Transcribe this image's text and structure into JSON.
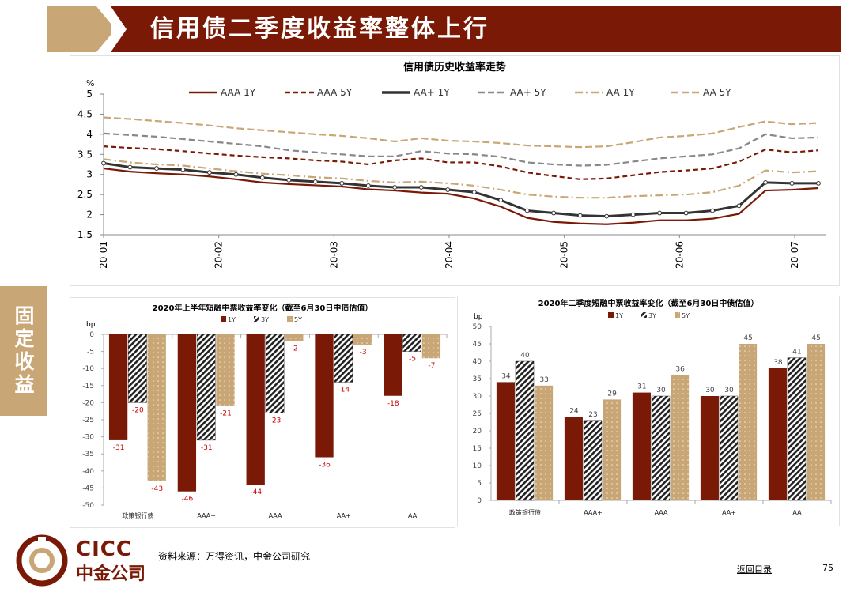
{
  "header": {
    "title": "信用债二季度收益率整体上行"
  },
  "sidebar": {
    "section_label": "固定收益"
  },
  "footer": {
    "source": "资料来源：万得资讯，中金公司研究",
    "toc_link": "返回目录",
    "page_number": "75",
    "logo_cn": "中金公司",
    "logo_en": "CICC"
  },
  "chart_data": [
    {
      "id": "credit-yield-history",
      "type": "line",
      "title": "信用债历史收益率走势",
      "ylabel": "%",
      "ylim": [
        1.5,
        5
      ],
      "yticks": [
        "5",
        "4.5",
        "4",
        "3.5",
        "3",
        "2.5",
        "2",
        "1.5"
      ],
      "xticks": [
        "20-01",
        "20-02",
        "20-03",
        "20-04",
        "20-05",
        "20-06",
        "20-07"
      ],
      "x_points": 28,
      "series": [
        {
          "name": "AAA 1Y",
          "color": "#7a1a06",
          "dash": "",
          "values": [
            3.15,
            3.07,
            3.03,
            3.0,
            2.95,
            2.88,
            2.8,
            2.76,
            2.73,
            2.7,
            2.63,
            2.6,
            2.55,
            2.52,
            2.4,
            2.2,
            1.92,
            1.82,
            1.78,
            1.76,
            1.8,
            1.86,
            1.86,
            1.9,
            2.02,
            2.6,
            2.62,
            2.66
          ]
        },
        {
          "name": "AAA 5Y",
          "color": "#7a1a06",
          "dash": "6,4",
          "values": [
            3.7,
            3.66,
            3.63,
            3.58,
            3.52,
            3.47,
            3.43,
            3.4,
            3.35,
            3.32,
            3.25,
            3.35,
            3.4,
            3.3,
            3.3,
            3.2,
            3.05,
            2.96,
            2.88,
            2.9,
            2.98,
            3.06,
            3.1,
            3.15,
            3.32,
            3.62,
            3.55,
            3.6
          ]
        },
        {
          "name": "AA+ 1Y",
          "color": "#333333",
          "dash": "",
          "marker": true,
          "values": [
            3.28,
            3.18,
            3.15,
            3.12,
            3.05,
            3.0,
            2.92,
            2.86,
            2.82,
            2.78,
            2.72,
            2.68,
            2.68,
            2.62,
            2.56,
            2.36,
            2.1,
            2.04,
            1.98,
            1.96,
            2.0,
            2.04,
            2.04,
            2.1,
            2.22,
            2.8,
            2.78,
            2.78
          ]
        },
        {
          "name": "AA+ 5Y",
          "color": "#888888",
          "dash": "8,4",
          "values": [
            4.02,
            3.98,
            3.94,
            3.88,
            3.82,
            3.76,
            3.7,
            3.6,
            3.55,
            3.5,
            3.45,
            3.45,
            3.58,
            3.52,
            3.5,
            3.44,
            3.3,
            3.25,
            3.22,
            3.24,
            3.32,
            3.4,
            3.45,
            3.5,
            3.65,
            4.0,
            3.9,
            3.92
          ]
        },
        {
          "name": "AA 1Y",
          "color": "#c9a675",
          "dash": "10,4,2,4",
          "values": [
            3.38,
            3.3,
            3.25,
            3.22,
            3.15,
            3.08,
            3.02,
            2.98,
            2.93,
            2.9,
            2.84,
            2.8,
            2.82,
            2.78,
            2.72,
            2.62,
            2.5,
            2.45,
            2.42,
            2.42,
            2.46,
            2.48,
            2.5,
            2.56,
            2.72,
            3.1,
            3.05,
            3.08
          ]
        },
        {
          "name": "AA 5Y",
          "color": "#c9a675",
          "dash": "9,4",
          "values": [
            4.42,
            4.38,
            4.33,
            4.28,
            4.22,
            4.15,
            4.1,
            4.05,
            4.0,
            3.96,
            3.9,
            3.82,
            3.9,
            3.84,
            3.82,
            3.78,
            3.72,
            3.7,
            3.68,
            3.7,
            3.8,
            3.92,
            3.96,
            4.02,
            4.18,
            4.32,
            4.25,
            4.28
          ]
        }
      ]
    },
    {
      "id": "h1-yield-change",
      "type": "bar",
      "title": "2020年上半年短融中票收益率变化（截至6月30日中债估值）",
      "ylabel": "bp",
      "ylim": [
        -50,
        0
      ],
      "yticks": [
        "0",
        "-5",
        "-10",
        "-15",
        "-20",
        "-25",
        "-30",
        "-35",
        "-40",
        "-45",
        "-50"
      ],
      "categories": [
        "政策银行债",
        "AAA+",
        "AAA",
        "AA+",
        "AA"
      ],
      "series": [
        {
          "name": "1Y",
          "values": [
            -31,
            -46,
            -44,
            -36,
            -18
          ]
        },
        {
          "name": "3Y",
          "values": [
            -20,
            -31,
            -23,
            -14,
            -5
          ]
        },
        {
          "name": "5Y",
          "values": [
            -43,
            -21,
            -2,
            -3,
            -7
          ]
        }
      ],
      "labels": [
        [
          "-31",
          "-20",
          "-43"
        ],
        [
          "-46",
          "-31",
          "-21"
        ],
        [
          "-44",
          "-23",
          "-2"
        ],
        [
          "-36",
          "-14",
          "-3"
        ],
        [
          "-18",
          "-5",
          "-7"
        ]
      ]
    },
    {
      "id": "q2-yield-change",
      "type": "bar",
      "title": "2020年二季度短融中票收益率变化（截至6月30日中债估值）",
      "ylabel": "bp",
      "ylim": [
        0,
        50
      ],
      "yticks": [
        "50",
        "45",
        "40",
        "35",
        "30",
        "25",
        "20",
        "15",
        "10",
        "5",
        "0"
      ],
      "categories": [
        "政策银行债",
        "AAA+",
        "AAA",
        "AA+",
        "AA"
      ],
      "series": [
        {
          "name": "1Y",
          "values": [
            34,
            24,
            31,
            30,
            38
          ]
        },
        {
          "name": "3Y",
          "values": [
            40,
            23,
            30,
            30,
            41
          ]
        },
        {
          "name": "5Y",
          "values": [
            33,
            29,
            36,
            45,
            45
          ]
        }
      ],
      "labels": [
        [
          "34",
          "40",
          "33"
        ],
        [
          "24",
          "23",
          "29"
        ],
        [
          "31",
          "30",
          "36"
        ],
        [
          "30",
          "30",
          "45"
        ],
        [
          "38",
          "41",
          "45"
        ]
      ]
    }
  ],
  "colors": {
    "brand": "#7a1a06",
    "tan": "#c9a675",
    "dark": "#333333"
  }
}
